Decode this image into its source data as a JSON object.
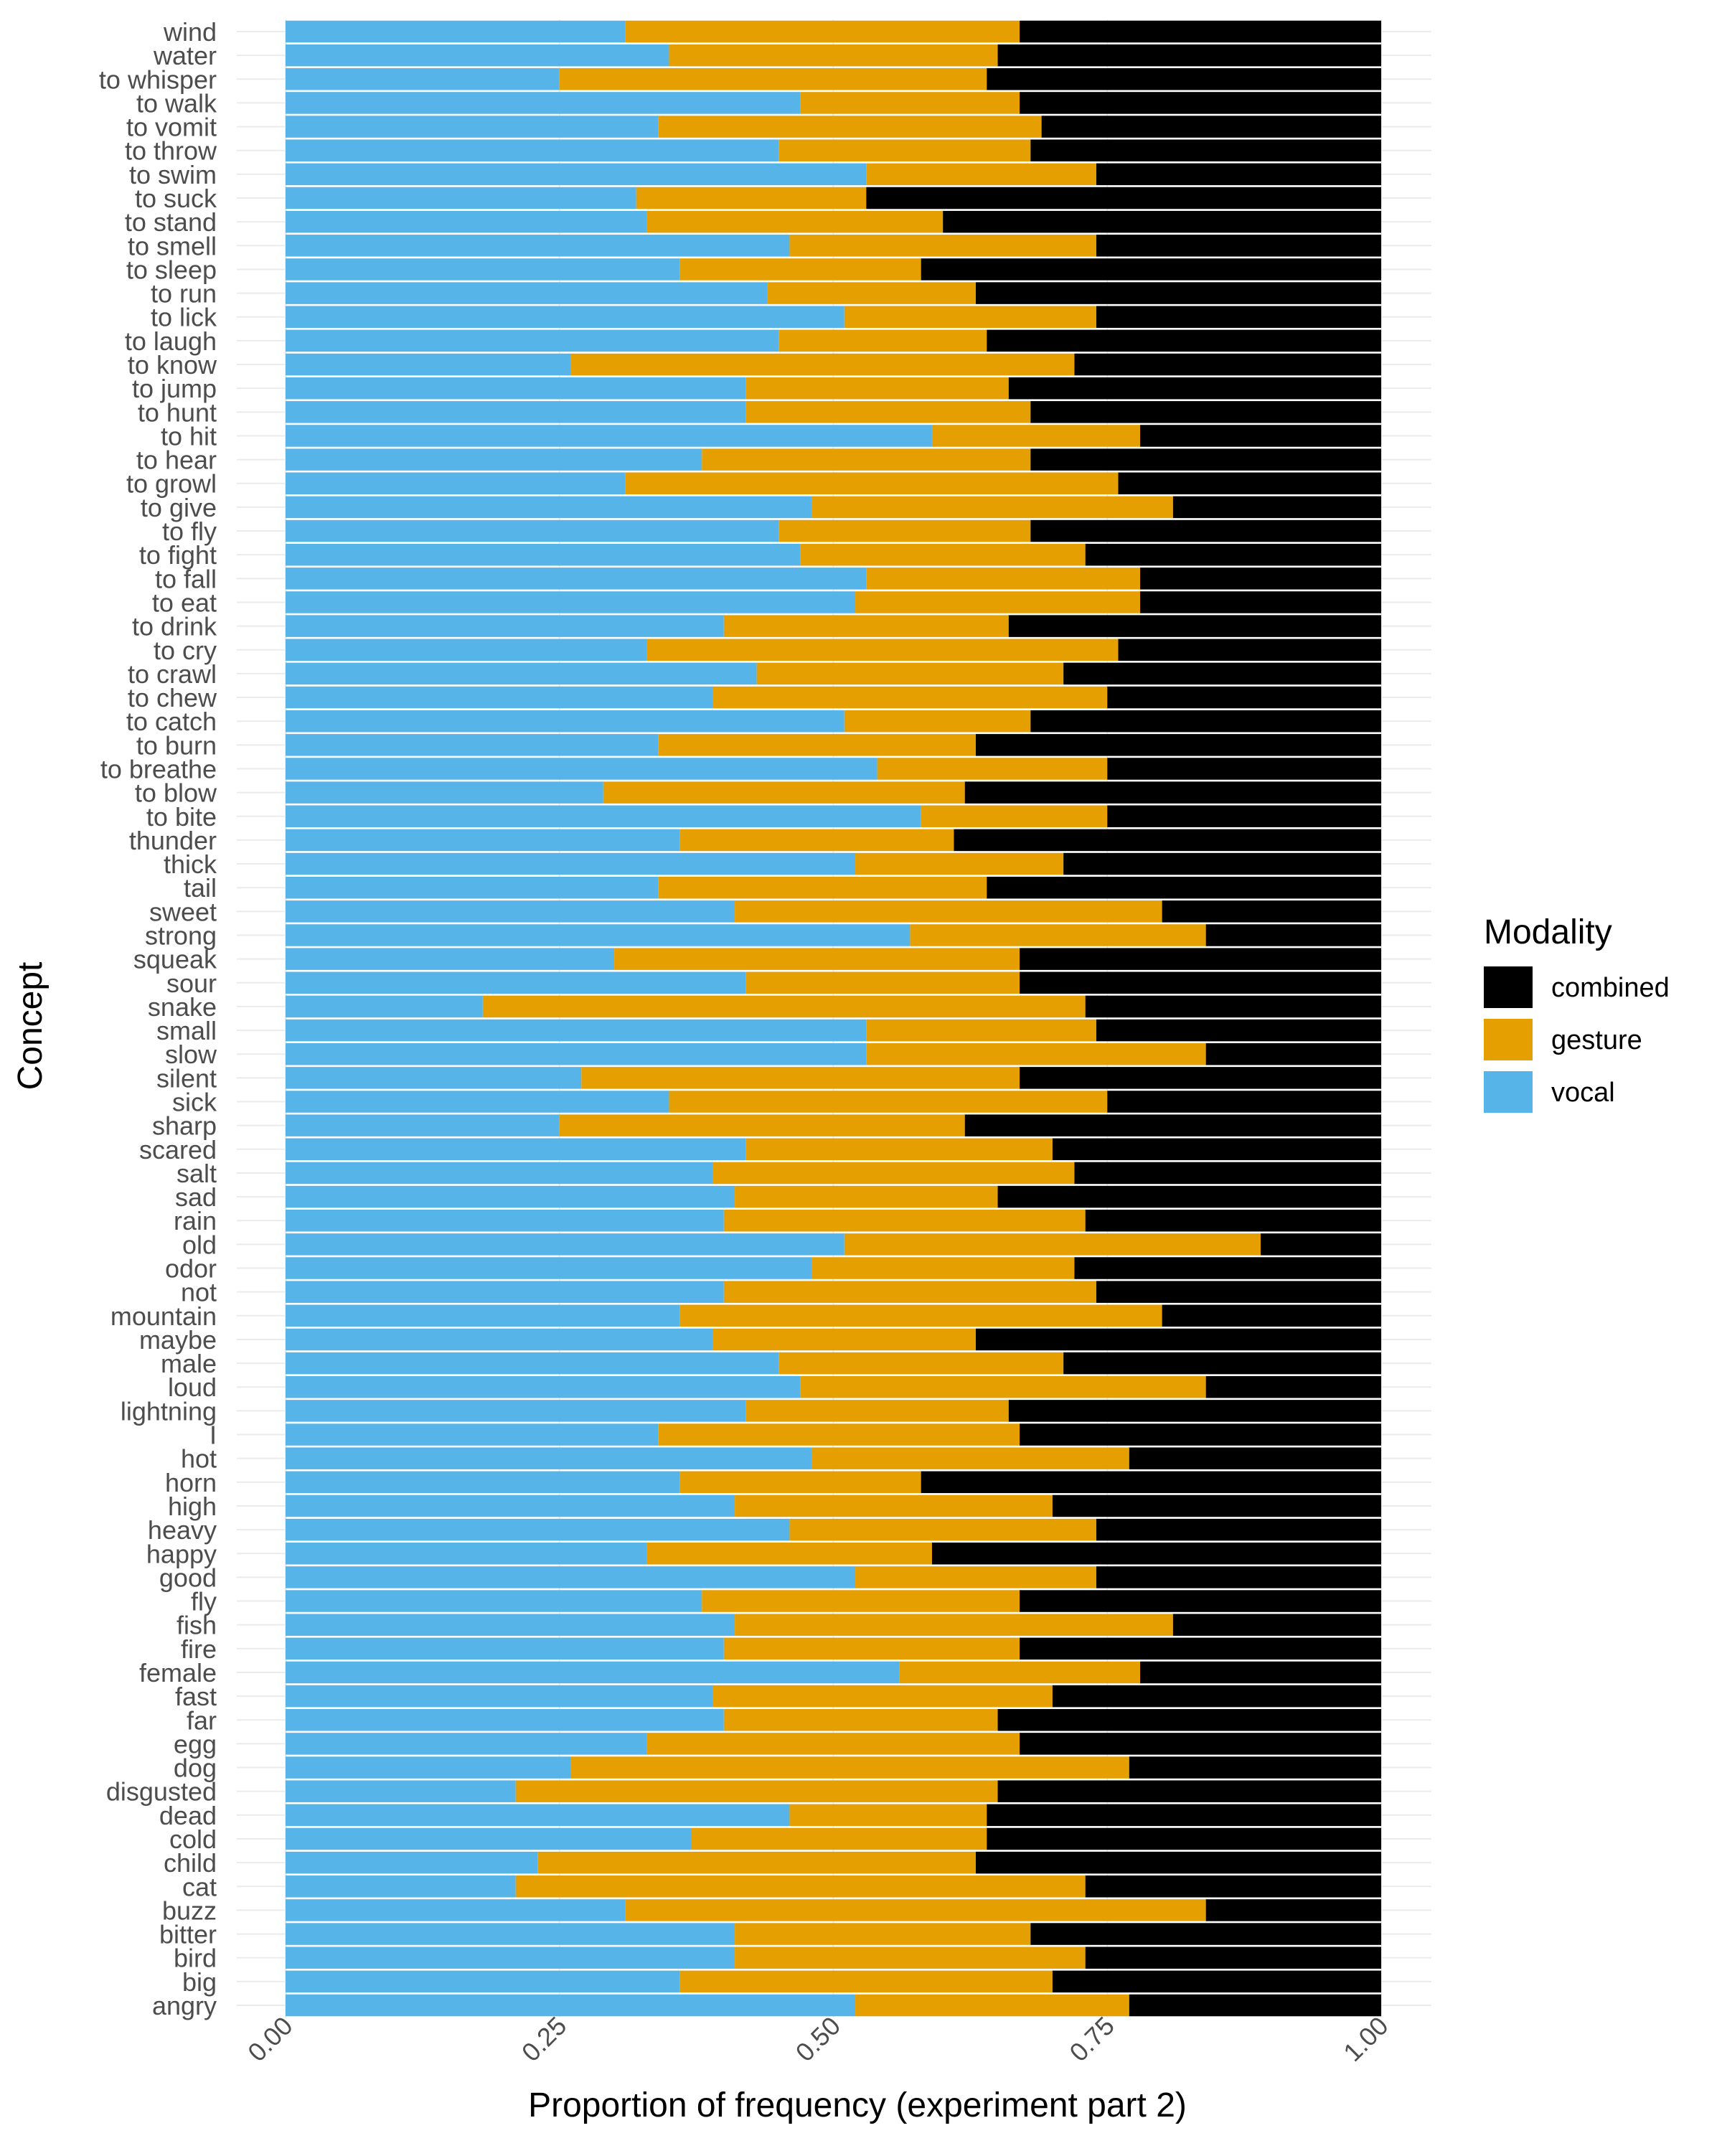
{
  "chart_data": {
    "type": "bar",
    "orientation": "horizontal",
    "stacked": true,
    "xlabel": "Proportion of frequency (experiment part 2)",
    "ylabel": "Concept",
    "xlim": [
      0,
      1
    ],
    "x_ticks": [
      "0.00",
      "0.25",
      "0.50",
      "0.75",
      "1.00"
    ],
    "grid": true,
    "legend_position": "right",
    "legend_title": "Modality",
    "legend": [
      {
        "name": "combined",
        "color": "#000000"
      },
      {
        "name": "gesture",
        "color": "#E69F00"
      },
      {
        "name": "vocal",
        "color": "#56B4E9"
      }
    ],
    "categories": [
      "wind",
      "water",
      "to whisper",
      "to walk",
      "to vomit",
      "to throw",
      "to swim",
      "to suck",
      "to stand",
      "to smell",
      "to sleep",
      "to run",
      "to lick",
      "to laugh",
      "to know",
      "to jump",
      "to hunt",
      "to hit",
      "to hear",
      "to growl",
      "to give",
      "to fly",
      "to fight",
      "to fall",
      "to eat",
      "to drink",
      "to cry",
      "to crawl",
      "to chew",
      "to catch",
      "to burn",
      "to breathe",
      "to blow",
      "to bite",
      "thunder",
      "thick",
      "tail",
      "sweet",
      "strong",
      "squeak",
      "sour",
      "snake",
      "small",
      "slow",
      "silent",
      "sick",
      "sharp",
      "scared",
      "salt",
      "sad",
      "rain",
      "old",
      "odor",
      "not",
      "mountain",
      "maybe",
      "male",
      "loud",
      "lightning",
      "I",
      "hot",
      "horn",
      "high",
      "heavy",
      "happy",
      "good",
      "fly",
      "fish",
      "fire",
      "female",
      "fast",
      "far",
      "egg",
      "dog",
      "disgusted",
      "dead",
      "cold",
      "child",
      "cat",
      "buzz",
      "bitter",
      "bird",
      "big",
      "angry"
    ],
    "series": [
      {
        "name": "vocal",
        "values": [
          0.31,
          0.35,
          0.25,
          0.47,
          0.34,
          0.45,
          0.53,
          0.32,
          0.33,
          0.46,
          0.36,
          0.44,
          0.51,
          0.45,
          0.26,
          0.42,
          0.42,
          0.59,
          0.38,
          0.31,
          0.48,
          0.45,
          0.47,
          0.53,
          0.52,
          0.4,
          0.33,
          0.43,
          0.39,
          0.51,
          0.34,
          0.54,
          0.29,
          0.58,
          0.36,
          0.52,
          0.34,
          0.41,
          0.57,
          0.3,
          0.42,
          0.18,
          0.53,
          0.53,
          0.27,
          0.35,
          0.25,
          0.42,
          0.39,
          0.41,
          0.4,
          0.51,
          0.48,
          0.4,
          0.36,
          0.39,
          0.45,
          0.47,
          0.42,
          0.34,
          0.48,
          0.36,
          0.41,
          0.46,
          0.33,
          0.52,
          0.38,
          0.41,
          0.4,
          0.56,
          0.39,
          0.4,
          0.33,
          0.26,
          0.21,
          0.46,
          0.37,
          0.23,
          0.21,
          0.31,
          0.41,
          0.41,
          0.36,
          0.52
        ]
      },
      {
        "name": "gesture",
        "values": [
          0.36,
          0.3,
          0.39,
          0.2,
          0.35,
          0.23,
          0.21,
          0.21,
          0.27,
          0.28,
          0.22,
          0.19,
          0.23,
          0.19,
          0.46,
          0.24,
          0.26,
          0.19,
          0.3,
          0.45,
          0.33,
          0.23,
          0.26,
          0.25,
          0.26,
          0.26,
          0.43,
          0.28,
          0.36,
          0.17,
          0.29,
          0.21,
          0.33,
          0.17,
          0.25,
          0.19,
          0.3,
          0.39,
          0.27,
          0.37,
          0.25,
          0.55,
          0.21,
          0.31,
          0.4,
          0.4,
          0.37,
          0.28,
          0.33,
          0.24,
          0.33,
          0.38,
          0.24,
          0.34,
          0.44,
          0.24,
          0.26,
          0.37,
          0.24,
          0.33,
          0.29,
          0.22,
          0.29,
          0.28,
          0.26,
          0.22,
          0.29,
          0.4,
          0.27,
          0.22,
          0.31,
          0.25,
          0.34,
          0.51,
          0.44,
          0.18,
          0.27,
          0.4,
          0.52,
          0.53,
          0.27,
          0.32,
          0.34,
          0.25
        ]
      },
      {
        "name": "combined",
        "values": [
          0.33,
          0.35,
          0.36,
          0.33,
          0.31,
          0.32,
          0.26,
          0.47,
          0.4,
          0.26,
          0.42,
          0.37,
          0.26,
          0.36,
          0.28,
          0.34,
          0.32,
          0.22,
          0.32,
          0.24,
          0.19,
          0.32,
          0.27,
          0.22,
          0.22,
          0.34,
          0.24,
          0.29,
          0.25,
          0.32,
          0.37,
          0.25,
          0.38,
          0.25,
          0.39,
          0.29,
          0.36,
          0.2,
          0.16,
          0.33,
          0.33,
          0.27,
          0.26,
          0.16,
          0.33,
          0.25,
          0.38,
          0.3,
          0.28,
          0.35,
          0.27,
          0.11,
          0.28,
          0.26,
          0.2,
          0.37,
          0.29,
          0.16,
          0.34,
          0.33,
          0.23,
          0.42,
          0.3,
          0.26,
          0.41,
          0.26,
          0.33,
          0.19,
          0.33,
          0.22,
          0.3,
          0.35,
          0.33,
          0.23,
          0.35,
          0.36,
          0.36,
          0.37,
          0.27,
          0.16,
          0.32,
          0.27,
          0.3,
          0.23
        ]
      }
    ]
  }
}
